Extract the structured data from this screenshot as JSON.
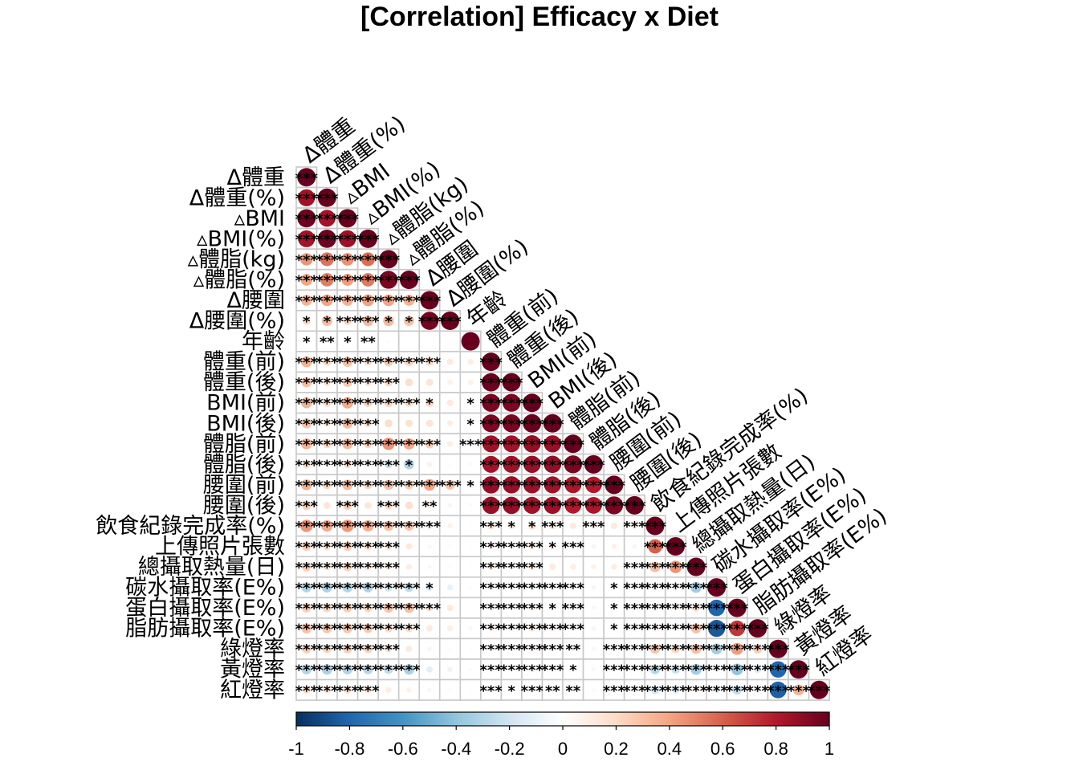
{
  "chart_data": {
    "type": "heatmap",
    "title": "[Correlation] Efficacy x Diet",
    "variables": [
      "Δ體重",
      "Δ體重(%)",
      "▵BMI",
      "▵BMI(%)",
      "▵體脂(kg)",
      "▵體脂(%)",
      "Δ腰圍",
      "Δ腰圍(%)",
      "年齡",
      "體重(前)",
      "體重(後)",
      "BMI(前)",
      "BMI(後)",
      "體脂(前)",
      "體脂(後)",
      "腰圍(前)",
      "腰圍(後)",
      "飲食紀錄完成率(%)",
      "上傳照片張數",
      "總攝取熱量(日)",
      "碳水攝取率(E%)",
      "蛋白攝取率(E%)",
      "脂肪攝取率(E%)",
      "綠燈率",
      "黃燈率",
      "紅燈率"
    ],
    "matrix": [
      [
        1
      ],
      [
        0.85,
        1
      ],
      [
        0.98,
        0.84,
        1
      ],
      [
        0.84,
        0.98,
        0.86,
        1
      ],
      [
        0.45,
        0.55,
        0.46,
        0.56,
        1
      ],
      [
        0.4,
        0.52,
        0.42,
        0.53,
        0.95,
        1
      ],
      [
        0.35,
        0.4,
        0.36,
        0.41,
        0.4,
        0.35,
        1
      ],
      [
        0.2,
        0.32,
        0.21,
        0.33,
        0.33,
        0.3,
        0.96,
        1
      ],
      [
        0.05,
        0.04,
        0.05,
        0.04,
        0.03,
        0.02,
        0.02,
        0.02,
        1
      ],
      [
        0.35,
        0.2,
        0.3,
        0.18,
        0.25,
        0.22,
        0.2,
        0.12,
        0.1,
        1
      ],
      [
        0.3,
        0.16,
        0.26,
        0.15,
        0.2,
        0.18,
        0.15,
        0.08,
        0.08,
        0.99,
        1
      ],
      [
        0.35,
        0.2,
        0.38,
        0.22,
        0.22,
        0.2,
        0.2,
        0.12,
        0.05,
        0.95,
        0.94,
        1
      ],
      [
        0.3,
        0.16,
        0.32,
        0.18,
        0.18,
        0.16,
        0.15,
        0.1,
        0.03,
        0.94,
        0.95,
        0.99,
        1
      ],
      [
        0.35,
        0.22,
        0.33,
        0.22,
        0.45,
        0.38,
        0.25,
        0.1,
        0.05,
        0.85,
        0.84,
        0.88,
        0.87,
        1
      ],
      [
        0.2,
        0.08,
        0.18,
        0.08,
        -0.2,
        -0.3,
        0.08,
        0.03,
        0.04,
        0.84,
        0.85,
        0.87,
        0.88,
        0.95,
        1
      ],
      [
        0.35,
        0.22,
        0.32,
        0.22,
        0.3,
        0.25,
        0.4,
        0.28,
        0.12,
        0.88,
        0.87,
        0.86,
        0.85,
        0.82,
        0.8,
        1
      ],
      [
        0.25,
        0.14,
        0.24,
        0.14,
        0.2,
        0.17,
        0.1,
        0.06,
        0.04,
        0.87,
        0.88,
        0.85,
        0.86,
        0.8,
        0.82,
        0.95,
        1
      ],
      [
        0.45,
        0.38,
        0.44,
        0.37,
        0.3,
        0.28,
        0.12,
        0.08,
        0.02,
        0.15,
        0.12,
        0.16,
        0.14,
        0.12,
        0.1,
        0.12,
        0.1,
        1
      ],
      [
        0.25,
        0.18,
        0.24,
        0.18,
        0.15,
        0.12,
        0.05,
        0.03,
        0.02,
        0.1,
        0.08,
        0.12,
        0.1,
        0.08,
        0.06,
        0.08,
        0.06,
        0.6,
        1
      ],
      [
        0.25,
        0.15,
        0.23,
        0.15,
        0.12,
        0.1,
        0.05,
        0.03,
        0.02,
        0.12,
        0.1,
        0.14,
        0.12,
        0.1,
        0.08,
        0.1,
        0.08,
        0.32,
        0.45,
        1
      ],
      [
        -0.3,
        -0.32,
        -0.3,
        -0.3,
        -0.2,
        -0.25,
        -0.15,
        -0.1,
        0.03,
        -0.1,
        -0.08,
        -0.12,
        -0.1,
        -0.08,
        -0.06,
        -0.05,
        -0.04,
        -0.12,
        -0.1,
        -0.35,
        1
      ],
      [
        0.25,
        0.22,
        0.25,
        0.22,
        0.28,
        0.3,
        0.15,
        0.12,
        0.02,
        0.08,
        0.06,
        0.1,
        0.08,
        0.06,
        0.05,
        0.05,
        0.04,
        0.12,
        0.1,
        0.18,
        -0.8,
        1
      ],
      [
        0.3,
        0.28,
        0.28,
        0.26,
        0.2,
        0.18,
        0.12,
        0.1,
        0.05,
        0.1,
        0.08,
        0.12,
        0.1,
        0.08,
        0.06,
        0.05,
        0.04,
        0.1,
        0.08,
        0.3,
        -0.85,
        0.72,
        1
      ],
      [
        0.25,
        0.22,
        0.24,
        0.22,
        0.15,
        0.12,
        0.06,
        0.03,
        0.02,
        0.08,
        0.06,
        0.1,
        0.08,
        0.06,
        0.05,
        0.05,
        0.04,
        0.28,
        0.22,
        0.3,
        -0.35,
        0.42,
        0.25,
        1
      ],
      [
        -0.3,
        -0.32,
        -0.3,
        -0.28,
        -0.25,
        -0.32,
        -0.12,
        -0.08,
        0.03,
        -0.08,
        -0.06,
        -0.1,
        -0.08,
        -0.06,
        -0.05,
        -0.04,
        -0.03,
        -0.28,
        -0.22,
        -0.35,
        -0.1,
        -0.4,
        -0.15,
        -0.8,
        1
      ],
      [
        0.18,
        0.15,
        0.17,
        0.15,
        0.1,
        0.08,
        0.05,
        0.03,
        0.02,
        0.06,
        0.05,
        0.08,
        0.06,
        0.05,
        0.04,
        0.04,
        0.03,
        -0.2,
        -0.16,
        0.1,
        -0.12,
        -0.25,
        0.1,
        -0.82,
        0.35,
        1
      ]
    ],
    "significance": [
      [
        "***"
      ],
      [
        "***",
        "***"
      ],
      [
        "***",
        "***",
        "***"
      ],
      [
        "***",
        "***",
        "***",
        "***"
      ],
      [
        "***",
        "***",
        "***",
        "***",
        "***"
      ],
      [
        "***",
        "***",
        "***",
        "***",
        "***",
        "***"
      ],
      [
        "***",
        "***",
        "***",
        "***",
        "***",
        "***",
        "***"
      ],
      [
        "*",
        "*",
        "***",
        "***",
        "*",
        "*",
        "***",
        "***"
      ],
      [
        "*",
        "**",
        "*",
        "**",
        "",
        "",
        "",
        "",
        ""
      ],
      [
        "***",
        "***",
        "***",
        "***",
        "***",
        "***",
        "***",
        "",
        "",
        "***"
      ],
      [
        "***",
        "***",
        "***",
        "***",
        "***",
        "",
        "",
        "",
        "",
        "***",
        "***"
      ],
      [
        "***",
        "***",
        "***",
        "***",
        "***",
        "***",
        "*",
        "",
        "*",
        "***",
        "***",
        "***"
      ],
      [
        "***",
        "***",
        "***",
        "***",
        "",
        "",
        "",
        "",
        "*",
        "***",
        "***",
        "***",
        "***"
      ],
      [
        "***",
        "***",
        "***",
        "***",
        "***",
        "***",
        "***",
        "",
        "***",
        "***",
        "***",
        "***",
        "***",
        "***"
      ],
      [
        "***",
        "***",
        "***",
        "***",
        "***",
        "*",
        "",
        "",
        "",
        "***",
        "***",
        "***",
        "***",
        "***",
        "***"
      ],
      [
        "***",
        "***",
        "***",
        "***",
        "***",
        "***",
        "***",
        "***",
        "*",
        "***",
        "***",
        "***",
        "***",
        "***",
        "***",
        "***"
      ],
      [
        "***",
        "",
        "***",
        "",
        "***",
        "",
        "**",
        "",
        "",
        "***",
        "***",
        "***",
        "***",
        "***",
        "***",
        "***",
        "***"
      ],
      [
        "***",
        "***",
        "***",
        "***",
        "***",
        "***",
        "***",
        "",
        "",
        "***",
        "*",
        "*",
        "***",
        "",
        "***",
        "",
        "***",
        "***"
      ],
      [
        "***",
        "***",
        "***",
        "***",
        "***",
        "",
        "",
        "",
        "",
        "***",
        "***",
        "***",
        "*",
        "***",
        "",
        "",
        "",
        "***",
        "***"
      ],
      [
        "***",
        "***",
        "***",
        "***",
        "***",
        "",
        "",
        "",
        "",
        "***",
        "***",
        "***",
        "",
        "",
        "",
        "",
        "***",
        "***",
        "***",
        "***"
      ],
      [
        "***",
        "***",
        "***",
        "***",
        "***",
        "***",
        "*",
        "",
        "",
        "***",
        "***",
        "***",
        "***",
        "***",
        "",
        "*",
        "***",
        "***",
        "***",
        "***",
        "***"
      ],
      [
        "***",
        "***",
        "***",
        "***",
        "***",
        "***",
        "***",
        "",
        "",
        "***",
        "***",
        "***",
        "*",
        "***",
        "",
        "*",
        "***",
        "***",
        "***",
        "***",
        "***",
        "***"
      ],
      [
        "***",
        "***",
        "***",
        "***",
        "***",
        "***",
        "",
        "",
        "",
        "***",
        "***",
        "***",
        "***",
        "***",
        "",
        "*",
        "***",
        "***",
        "***",
        "***",
        "***",
        "***",
        "***"
      ],
      [
        "***",
        "***",
        "***",
        "***",
        "***",
        "",
        "",
        "",
        "",
        "***",
        "***",
        "***",
        "***",
        "**",
        "",
        "***",
        "***",
        "***",
        "***",
        "***",
        "***",
        "***",
        "***",
        "***"
      ],
      [
        "***",
        "***",
        "***",
        "***",
        "***",
        "***",
        "",
        "",
        "",
        "***",
        "***",
        "***",
        "***",
        "*",
        "",
        "***",
        "***",
        "***",
        "***",
        "***",
        "***",
        "***",
        "***",
        "***",
        "***"
      ],
      [
        "***",
        "***",
        "***",
        "***",
        "",
        "",
        "",
        "",
        "",
        "***",
        "*",
        "***",
        "**",
        "**",
        "",
        "***",
        "***",
        "***",
        "***",
        "***",
        "***",
        "***",
        "***",
        "***",
        "***",
        "***"
      ]
    ],
    "colorbar": {
      "min": -1,
      "max": 1,
      "ticks": [
        "-1",
        "-0.8",
        "-0.6",
        "-0.4",
        "-0.2",
        "0",
        "0.2",
        "0.4",
        "0.6",
        "0.8",
        "1"
      ],
      "colors": [
        "#053061",
        "#2166AC",
        "#4393C3",
        "#92C5DE",
        "#D1E5F0",
        "#FFFFFF",
        "#FDDBC7",
        "#F4A582",
        "#D6604D",
        "#B2182B",
        "#67001F"
      ]
    },
    "layout_style": "lower-triangle",
    "grid": true
  }
}
